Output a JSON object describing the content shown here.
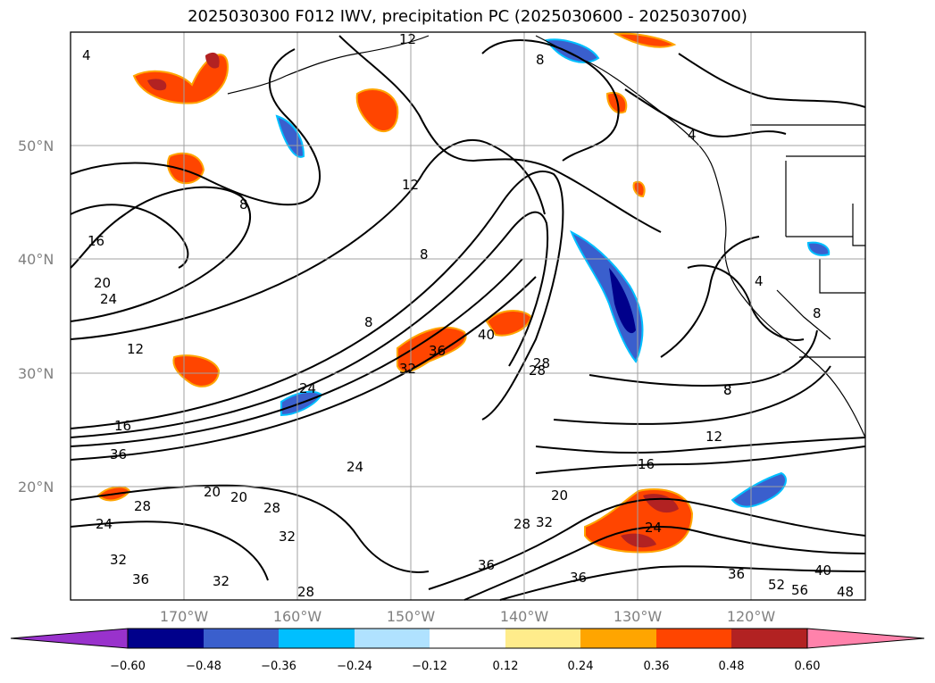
{
  "title": "2025030300 F012 IWV, precipitation PC (2025030600 - 2025030700)",
  "lat_labels": [
    "50°N",
    "40°N",
    "30°N",
    "20°N"
  ],
  "lon_labels": [
    "170°W",
    "160°W",
    "150°W",
    "140°W",
    "130°W",
    "120°W"
  ],
  "colorbar": {
    "ticks": [
      "−0.60",
      "−0.48",
      "−0.36",
      "−0.24",
      "−0.12",
      "0.12",
      "0.24",
      "0.36",
      "0.48",
      "0.60"
    ],
    "colors": [
      "#9932CC",
      "#00008B",
      "#3A5FCD",
      "#00BFFF",
      "#B0E2FF",
      "#FFFFFF",
      "#FFEC8B",
      "#FFA500",
      "#FF4500",
      "#B22222",
      "#FF82AB"
    ]
  },
  "contour_labels": [
    "4",
    "12",
    "8",
    "4",
    "8",
    "12",
    "8",
    "16",
    "20",
    "24",
    "8",
    "12",
    "8",
    "32",
    "36",
    "40",
    "28",
    "24",
    "16",
    "36",
    "24",
    "20",
    "28",
    "32",
    "32",
    "36",
    "32",
    "28",
    "8",
    "12",
    "16",
    "20",
    "28",
    "32",
    "24",
    "36",
    "36",
    "36",
    "40",
    "52",
    "56",
    "48",
    "28",
    "20",
    "24",
    "28",
    "4",
    "8"
  ],
  "colors": {
    "land_line": "#000000",
    "grid": "#a0a0a0",
    "frame": "#000000"
  }
}
